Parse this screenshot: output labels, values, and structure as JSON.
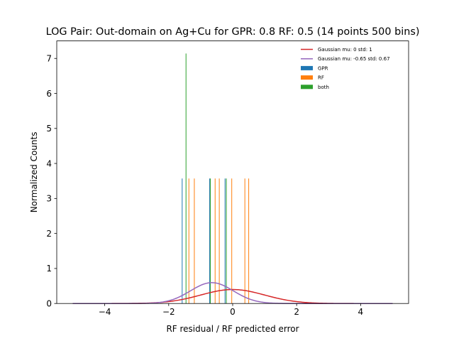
{
  "chart_data": {
    "type": "bar",
    "title": "LOG Pair: Out-domain on Ag+Cu for GPR: 0.8 RF: 0.5 (14 points 500 bins)",
    "xlabel": "RF residual / RF predicted error",
    "ylabel": "Normalized Counts",
    "xlim": [
      -5.5,
      5.5
    ],
    "ylim": [
      0,
      7.5
    ],
    "xticks": [
      -4,
      -2,
      0,
      2,
      4
    ],
    "xtick_labels": [
      "−4",
      "−2",
      "0",
      "2",
      "4"
    ],
    "yticks": [
      0,
      1,
      2,
      3,
      4,
      5,
      6,
      7
    ],
    "ytick_labels": [
      "0",
      "1",
      "2",
      "3",
      "4",
      "5",
      "6",
      "7"
    ],
    "grid": false,
    "legend_position": "top-right",
    "bar_width": 0.02,
    "bars": [
      {
        "series": "GPR",
        "x": -1.58,
        "height": 3.57
      },
      {
        "series": "GPR",
        "x": -0.72,
        "height": 3.57
      },
      {
        "series": "GPR",
        "x": -0.24,
        "height": 3.57
      },
      {
        "series": "RF",
        "x": -1.37,
        "height": 3.57
      },
      {
        "series": "RF",
        "x": -1.2,
        "height": 3.57
      },
      {
        "series": "RF",
        "x": -0.55,
        "height": 3.57
      },
      {
        "series": "RF",
        "x": -0.42,
        "height": 3.57
      },
      {
        "series": "RF",
        "x": -0.03,
        "height": 3.57
      },
      {
        "series": "RF",
        "x": 0.38,
        "height": 3.57
      },
      {
        "series": "RF",
        "x": 0.5,
        "height": 3.57
      },
      {
        "series": "both",
        "x": -1.46,
        "height": 7.14
      },
      {
        "series": "both",
        "x": -0.7,
        "height": 3.57
      },
      {
        "series": "both",
        "x": -0.2,
        "height": 3.57
      }
    ],
    "curves": [
      {
        "name": "Gaussian mu: 0 std: 1",
        "mu": 0,
        "std": 1,
        "x_range": [
          -5,
          5
        ]
      },
      {
        "name": "Gaussian mu: -0.65 std: 0.67",
        "mu": -0.65,
        "std": 0.67,
        "x_range": [
          -5,
          5
        ]
      }
    ],
    "legend": [
      {
        "label": "Gaussian mu: 0 std: 1",
        "kind": "line",
        "color": "#d62728"
      },
      {
        "label": "Gaussian mu: -0.65 std: 0.67",
        "kind": "line",
        "color": "#9467bd"
      },
      {
        "label": "GPR",
        "kind": "patch",
        "color": "#1f77b4"
      },
      {
        "label": "RF",
        "kind": "patch",
        "color": "#ff7f0e"
      },
      {
        "label": "both",
        "kind": "patch",
        "color": "#2ca02c"
      }
    ],
    "colors": {
      "GPR": "#1f77b4",
      "RF": "#ff7f0e",
      "both": "#2ca02c",
      "gauss_standard": "#d62728",
      "gauss_fit": "#9467bd"
    }
  }
}
